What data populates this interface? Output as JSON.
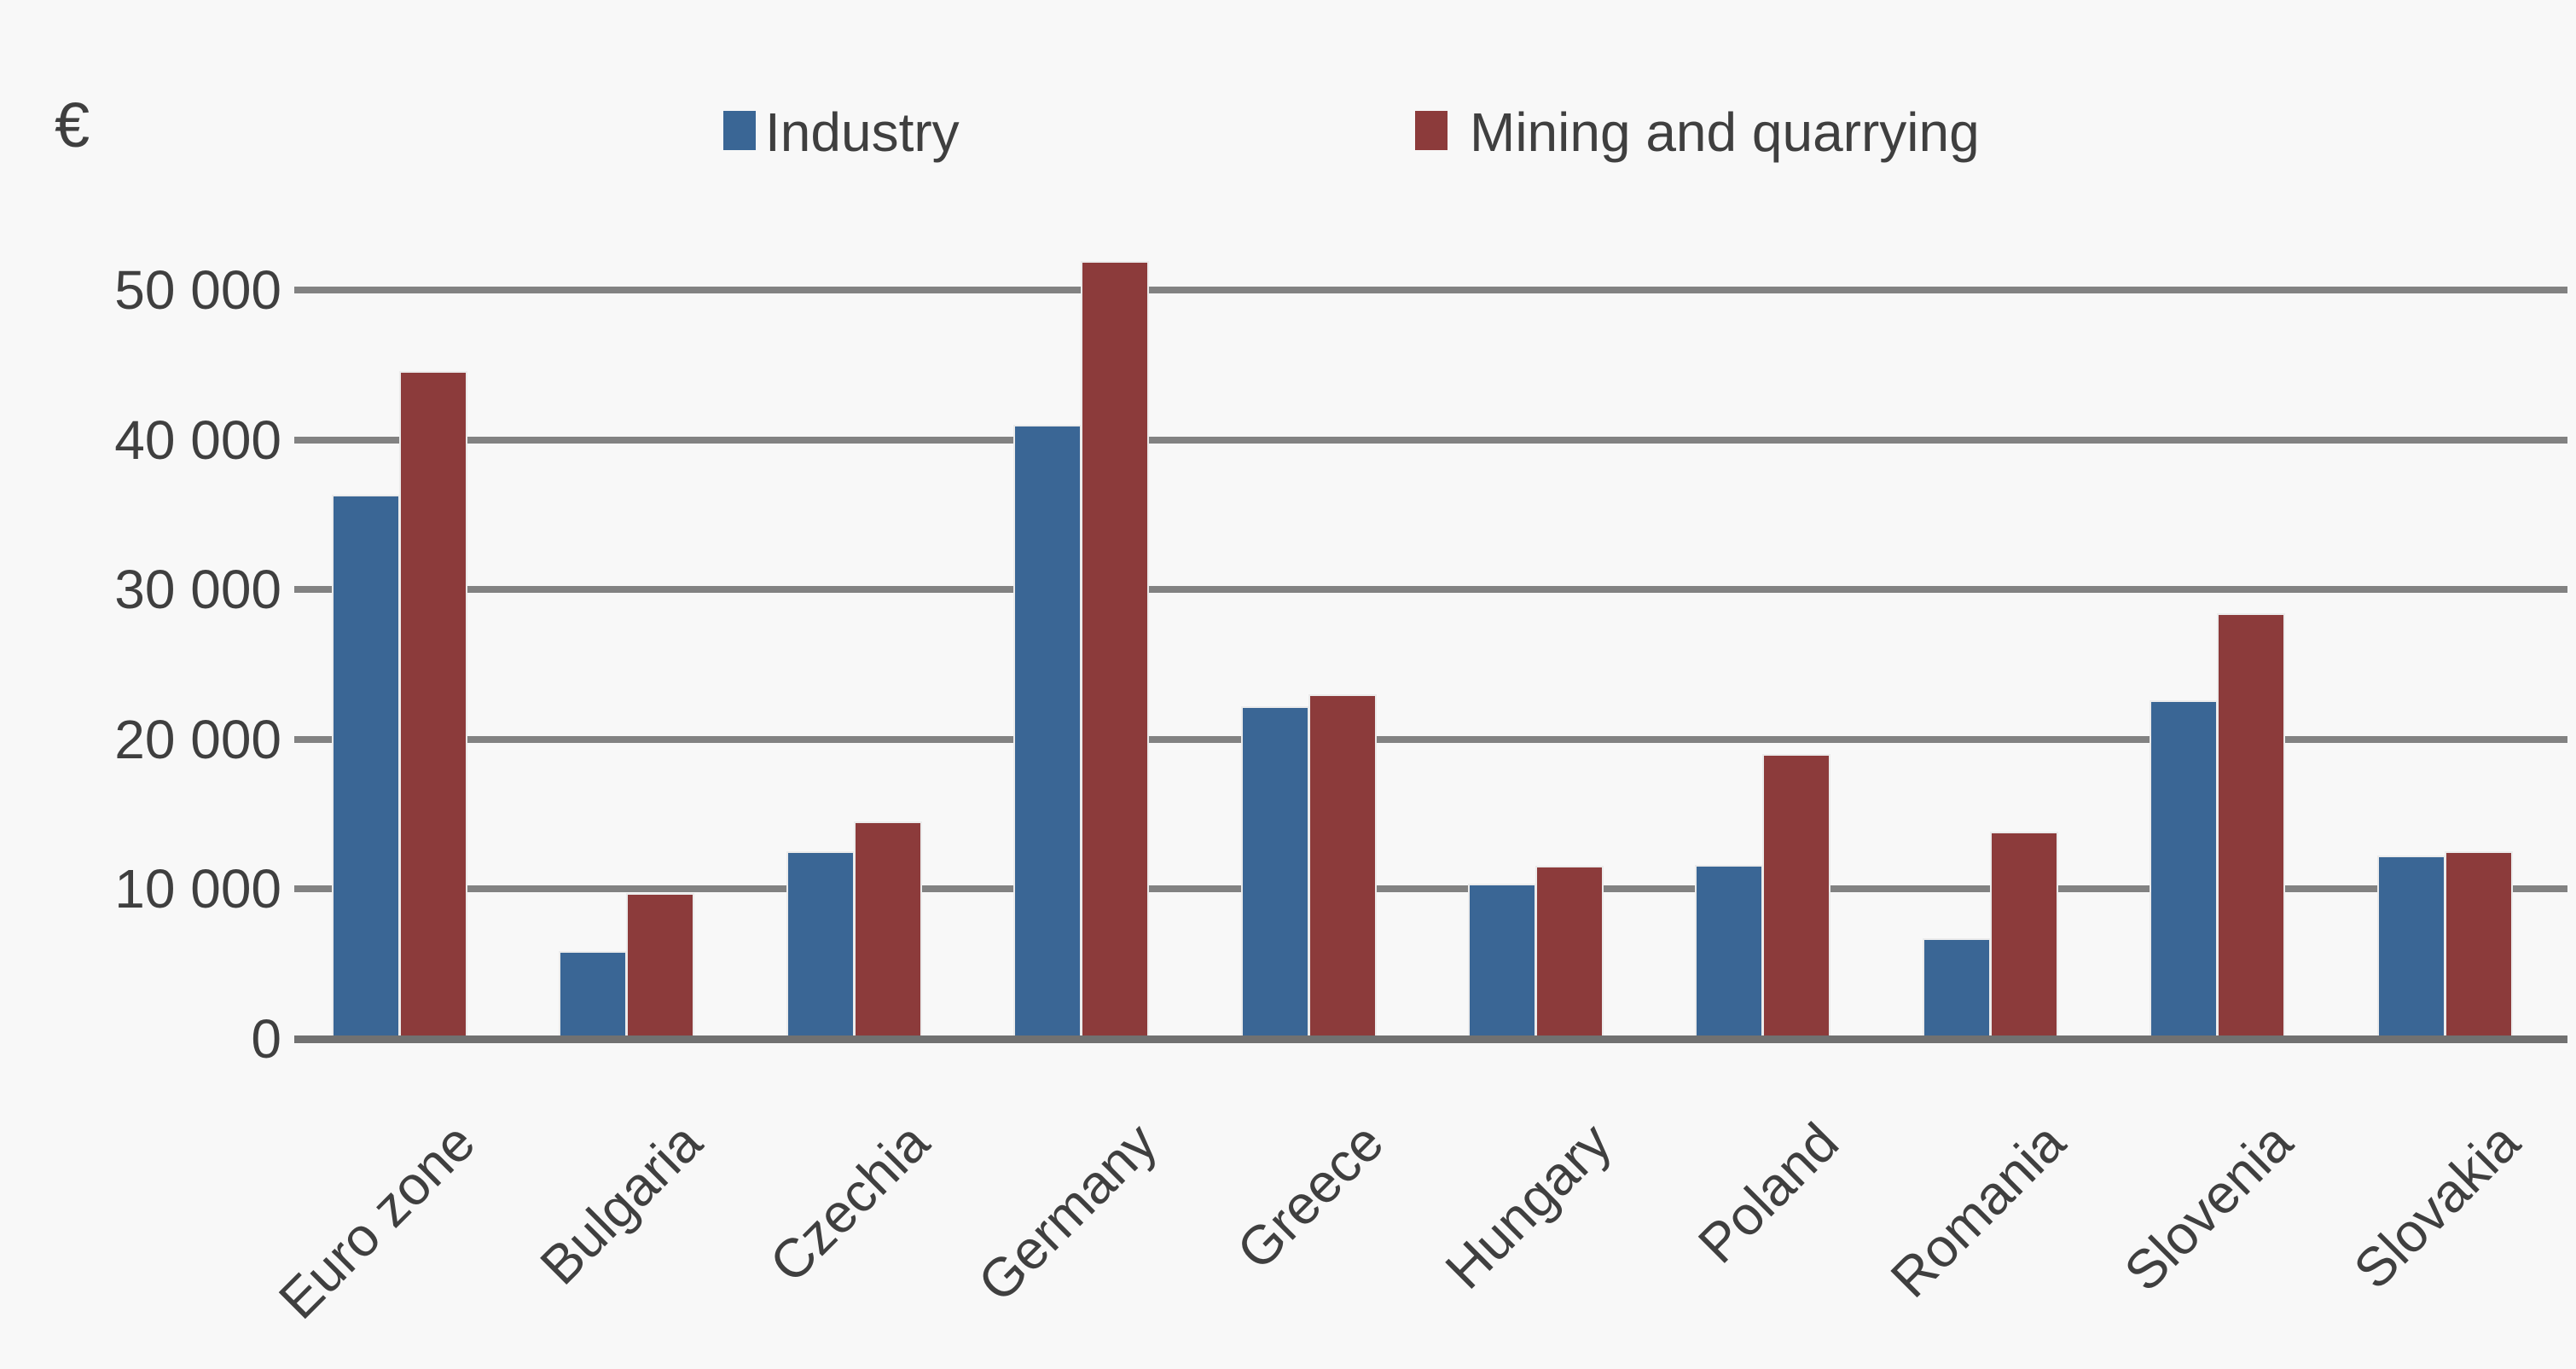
{
  "page": {
    "background": "#f8f8f8"
  },
  "chart_data": {
    "type": "bar",
    "title": "",
    "unit_label": "€",
    "categories": [
      "Euro zone",
      "Bulgaria",
      "Czechia",
      "Germany",
      "Greece",
      "Hungary",
      "Poland",
      "Romania",
      "Slovenia",
      "Slovakia"
    ],
    "series": [
      {
        "name": "Industry",
        "color": "#3a6695",
        "values": [
          36200,
          5700,
          12400,
          40900,
          22100,
          10200,
          11500,
          6600,
          22500,
          12100
        ]
      },
      {
        "name": "Mining and quarrying",
        "color": "#8c3b3b",
        "values": [
          44500,
          9600,
          14400,
          51800,
          22900,
          11400,
          18900,
          13700,
          28300,
          12400
        ]
      }
    ],
    "y_ticks": [
      {
        "label": "50 000",
        "value": 50000
      },
      {
        "label": "40 000",
        "value": 40000
      },
      {
        "label": "30 000",
        "value": 30000
      },
      {
        "label": "20 000",
        "value": 20000
      },
      {
        "label": "10 000",
        "value": 10000
      },
      {
        "label": "0",
        "value": 0
      }
    ],
    "ylim": [
      0,
      50000
    ],
    "grid": "horizontal-only",
    "legend_position": "top",
    "xlabel": "",
    "ylabel": "€",
    "colors": {
      "gridline": "#828282",
      "axis": "#717171",
      "text": "#3f3f3f",
      "background": "#f8f8f8"
    }
  }
}
